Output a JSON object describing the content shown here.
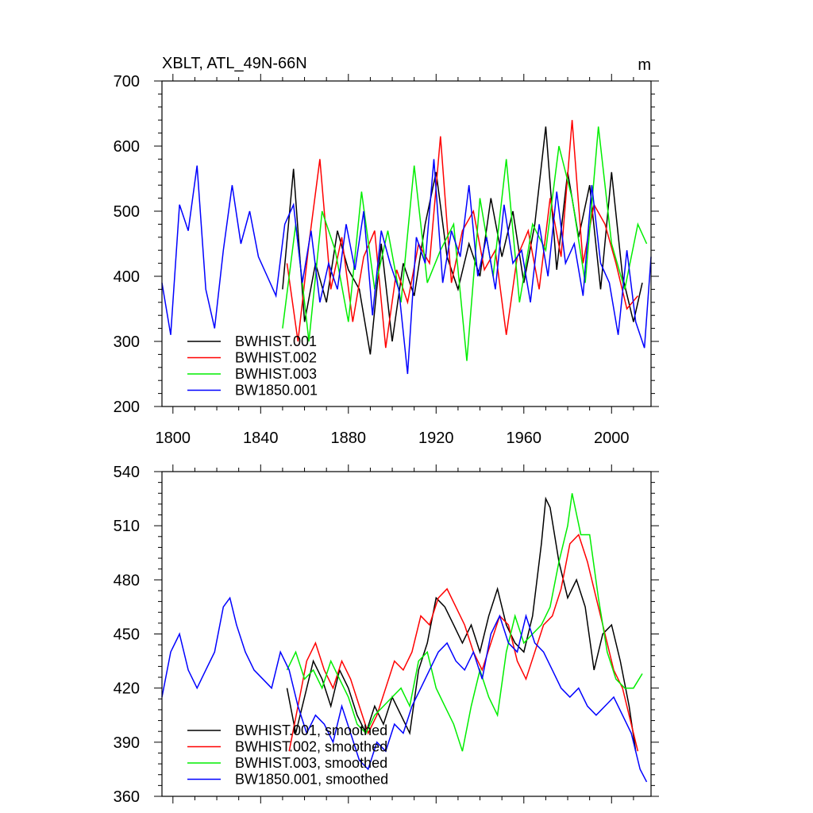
{
  "chart_data": [
    {
      "type": "line",
      "title": "XBLT, ATL_49N-66N",
      "units": "m",
      "xlim": [
        1795,
        2018
      ],
      "ylim": [
        200,
        700
      ],
      "xticks": [
        1800,
        1840,
        1880,
        1920,
        1960,
        2000
      ],
      "xtick_labels": [
        "1800",
        "1840",
        "1880",
        "1920",
        "1960",
        "2000"
      ],
      "yticks": [
        200,
        300,
        400,
        500,
        600,
        700
      ],
      "ytick_labels": [
        "200",
        "300",
        "400",
        "500",
        "600",
        "700"
      ],
      "legend_location": "bottom-left",
      "series": [
        {
          "name": "BWHIST.001",
          "color": "#000000",
          "x": [
            1850,
            1855,
            1860,
            1865,
            1870,
            1875,
            1880,
            1885,
            1890,
            1895,
            1900,
            1905,
            1910,
            1915,
            1920,
            1925,
            1930,
            1935,
            1940,
            1945,
            1950,
            1955,
            1960,
            1965,
            1970,
            1975,
            1980,
            1985,
            1990,
            1995,
            2000,
            2005,
            2010,
            2014
          ],
          "y": [
            380,
            565,
            330,
            420,
            360,
            470,
            410,
            380,
            280,
            450,
            300,
            420,
            370,
            480,
            560,
            430,
            380,
            450,
            400,
            520,
            430,
            500,
            390,
            480,
            630,
            410,
            560,
            460,
            540,
            380,
            560,
            400,
            330,
            390
          ]
        },
        {
          "name": "BWHIST.002",
          "color": "#ff0000",
          "x": [
            1852,
            1857,
            1862,
            1867,
            1872,
            1877,
            1882,
            1887,
            1892,
            1897,
            1902,
            1907,
            1912,
            1917,
            1922,
            1927,
            1932,
            1937,
            1942,
            1947,
            1952,
            1957,
            1962,
            1967,
            1972,
            1977,
            1982,
            1987,
            1992,
            1997,
            2002,
            2007,
            2012
          ],
          "y": [
            420,
            300,
            450,
            580,
            380,
            460,
            330,
            430,
            470,
            290,
            410,
            360,
            450,
            420,
            615,
            390,
            470,
            500,
            410,
            440,
            310,
            430,
            470,
            380,
            520,
            430,
            640,
            420,
            510,
            480,
            420,
            350,
            370
          ]
        },
        {
          "name": "BWHIST.003",
          "color": "#00ee00",
          "x": [
            1850,
            1856,
            1862,
            1868,
            1874,
            1880,
            1886,
            1892,
            1898,
            1904,
            1910,
            1916,
            1922,
            1928,
            1934,
            1940,
            1946,
            1952,
            1958,
            1964,
            1970,
            1976,
            1982,
            1988,
            1994,
            2000,
            2006,
            2012,
            2016
          ],
          "y": [
            320,
            480,
            300,
            500,
            440,
            330,
            530,
            380,
            470,
            360,
            570,
            390,
            440,
            480,
            270,
            520,
            400,
            580,
            360,
            480,
            440,
            600,
            520,
            390,
            630,
            450,
            380,
            480,
            450
          ]
        },
        {
          "name": "BW1850.001",
          "color": "#0000ff",
          "x": [
            1795,
            1799,
            1803,
            1807,
            1811,
            1815,
            1819,
            1823,
            1827,
            1831,
            1835,
            1839,
            1843,
            1847,
            1851,
            1855,
            1859,
            1863,
            1867,
            1871,
            1875,
            1879,
            1883,
            1887,
            1891,
            1895,
            1899,
            1903,
            1907,
            1911,
            1915,
            1919,
            1923,
            1927,
            1931,
            1935,
            1939,
            1943,
            1947,
            1951,
            1955,
            1959,
            1963,
            1967,
            1971,
            1975,
            1979,
            1983,
            1987,
            1991,
            1995,
            1999,
            2003,
            2007,
            2011,
            2015,
            2018
          ],
          "y": [
            390,
            310,
            510,
            470,
            570,
            380,
            320,
            440,
            540,
            450,
            500,
            430,
            400,
            370,
            480,
            510,
            390,
            470,
            360,
            420,
            380,
            480,
            410,
            500,
            340,
            470,
            420,
            380,
            250,
            460,
            420,
            580,
            390,
            470,
            430,
            540,
            400,
            460,
            380,
            510,
            420,
            440,
            360,
            480,
            400,
            530,
            420,
            450,
            370,
            540,
            420,
            390,
            310,
            440,
            330,
            290,
            430
          ]
        }
      ]
    },
    {
      "type": "line",
      "xlim": [
        1795,
        2018
      ],
      "ylim": [
        360,
        540
      ],
      "yticks": [
        360,
        390,
        420,
        450,
        480,
        510,
        540
      ],
      "ytick_labels": [
        "360",
        "390",
        "420",
        "450",
        "480",
        "510",
        "540"
      ],
      "legend_location": "bottom-left",
      "series": [
        {
          "name": "BWHIST.001, smoothed",
          "color": "#000000",
          "x": [
            1852,
            1856,
            1860,
            1864,
            1868,
            1872,
            1876,
            1880,
            1884,
            1888,
            1892,
            1896,
            1900,
            1904,
            1908,
            1912,
            1916,
            1920,
            1924,
            1928,
            1932,
            1936,
            1940,
            1944,
            1948,
            1952,
            1956,
            1960,
            1964,
            1968,
            1970,
            1972,
            1976,
            1980,
            1984,
            1988,
            1992,
            1996,
            2000,
            2004,
            2008,
            2011
          ],
          "y": [
            420,
            395,
            415,
            435,
            425,
            410,
            430,
            420,
            405,
            395,
            410,
            400,
            415,
            405,
            395,
            430,
            445,
            470,
            465,
            455,
            445,
            455,
            440,
            460,
            475,
            455,
            445,
            440,
            460,
            500,
            525,
            520,
            490,
            470,
            480,
            465,
            430,
            450,
            455,
            435,
            410,
            385
          ]
        },
        {
          "name": "BWHIST.002, smoothed",
          "color": "#ff0000",
          "x": [
            1853,
            1857,
            1861,
            1865,
            1869,
            1873,
            1877,
            1881,
            1885,
            1889,
            1893,
            1897,
            1901,
            1905,
            1909,
            1913,
            1917,
            1921,
            1925,
            1929,
            1933,
            1937,
            1941,
            1945,
            1949,
            1953,
            1957,
            1961,
            1965,
            1969,
            1973,
            1977,
            1981,
            1985,
            1989,
            1993,
            1997,
            2001,
            2005,
            2009,
            2012
          ],
          "y": [
            385,
            410,
            435,
            445,
            430,
            420,
            435,
            425,
            410,
            395,
            405,
            420,
            435,
            430,
            440,
            460,
            455,
            470,
            475,
            465,
            455,
            440,
            430,
            445,
            460,
            455,
            435,
            425,
            440,
            455,
            460,
            475,
            500,
            505,
            490,
            470,
            450,
            430,
            420,
            400,
            385
          ]
        },
        {
          "name": "BWHIST.003, smoothed",
          "color": "#00ee00",
          "x": [
            1852,
            1856,
            1860,
            1864,
            1868,
            1872,
            1876,
            1880,
            1884,
            1888,
            1892,
            1896,
            1900,
            1904,
            1908,
            1912,
            1916,
            1920,
            1924,
            1928,
            1932,
            1936,
            1940,
            1944,
            1948,
            1952,
            1956,
            1960,
            1964,
            1968,
            1972,
            1976,
            1980,
            1982,
            1986,
            1990,
            1994,
            1998,
            2002,
            2006,
            2010,
            2014
          ],
          "y": [
            430,
            440,
            425,
            430,
            420,
            435,
            425,
            415,
            400,
            395,
            405,
            410,
            415,
            420,
            410,
            435,
            440,
            420,
            410,
            400,
            385,
            410,
            430,
            415,
            405,
            440,
            460,
            445,
            450,
            455,
            465,
            490,
            510,
            528,
            505,
            505,
            470,
            440,
            425,
            420,
            420,
            428
          ]
        },
        {
          "name": "BW1850.001, smoothed",
          "color": "#0000ff",
          "x": [
            1795,
            1799,
            1803,
            1807,
            1811,
            1815,
            1819,
            1823,
            1826,
            1829,
            1833,
            1837,
            1841,
            1845,
            1849,
            1853,
            1857,
            1861,
            1865,
            1869,
            1873,
            1877,
            1881,
            1885,
            1889,
            1893,
            1897,
            1901,
            1905,
            1909,
            1913,
            1917,
            1921,
            1925,
            1929,
            1933,
            1937,
            1941,
            1945,
            1949,
            1953,
            1957,
            1961,
            1965,
            1969,
            1973,
            1977,
            1981,
            1985,
            1989,
            1993,
            1997,
            2001,
            2005,
            2009,
            2013,
            2016
          ],
          "y": [
            415,
            440,
            450,
            430,
            420,
            430,
            440,
            465,
            470,
            455,
            440,
            430,
            425,
            420,
            440,
            430,
            410,
            395,
            405,
            400,
            390,
            410,
            395,
            380,
            375,
            390,
            385,
            400,
            395,
            410,
            420,
            430,
            440,
            445,
            435,
            430,
            440,
            425,
            450,
            460,
            445,
            440,
            460,
            445,
            440,
            430,
            420,
            415,
            420,
            410,
            405,
            410,
            415,
            405,
            395,
            375,
            368
          ]
        }
      ]
    }
  ]
}
